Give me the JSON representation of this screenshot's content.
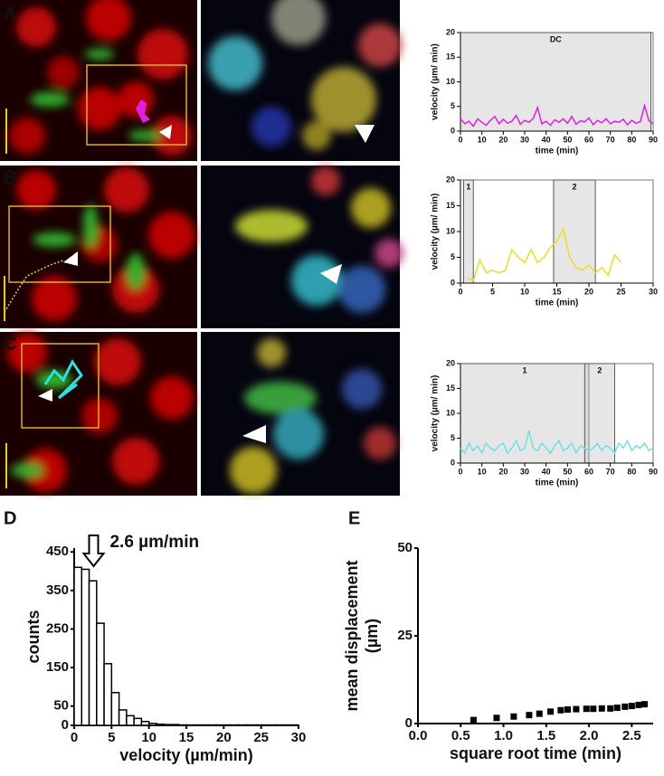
{
  "panel_labels": [
    "A",
    "B",
    "C",
    "D",
    "E"
  ],
  "chart_data": [
    {
      "type": "line",
      "xlabel": "time (min)",
      "ylabel": [
        "velocity (µm/ min)"
      ],
      "xlim": [
        0,
        90
      ],
      "ylim": [
        0,
        20
      ],
      "xticks": [
        0,
        10,
        20,
        30,
        40,
        50,
        60,
        70,
        80,
        90
      ],
      "yticks": [
        0,
        5,
        10,
        15,
        20
      ],
      "regions": [
        {
          "label": "DC",
          "start": 0,
          "end": 89
        }
      ],
      "x": [
        0,
        2,
        4,
        6,
        8,
        10,
        12,
        14,
        16,
        18,
        20,
        22,
        24,
        26,
        28,
        30,
        32,
        34,
        36,
        38,
        40,
        42,
        44,
        46,
        48,
        50,
        52,
        54,
        56,
        58,
        60,
        62,
        64,
        66,
        68,
        70,
        72,
        74,
        76,
        78,
        80,
        82,
        84,
        86,
        88,
        90
      ],
      "series": [
        {
          "color": "#e020e0",
          "values": [
            2.5,
            1.5,
            2,
            1,
            2.5,
            1.8,
            1.2,
            2.2,
            3,
            1.5,
            2.4,
            1.6,
            2,
            3.2,
            1.4,
            2.2,
            1.8,
            2.6,
            4.8,
            1.5,
            2,
            1.2,
            2.3,
            1.8,
            2.5,
            1.6,
            3,
            1.4,
            2.1,
            1.9,
            2.7,
            1.3,
            2.2,
            1.7,
            2.5,
            1.5,
            2,
            1.8,
            2.4,
            1.3,
            2.2,
            1.6,
            1.9,
            5.2,
            2.1,
            1.5
          ]
        }
      ]
    },
    {
      "type": "line",
      "xlabel": "time (min)",
      "ylabel": [
        "velocity (µm/ min)"
      ],
      "xlim": [
        0,
        30
      ],
      "ylim": [
        0,
        20
      ],
      "xticks": [
        0,
        5,
        10,
        15,
        20,
        25,
        30
      ],
      "yticks": [
        0,
        5,
        10,
        15,
        20
      ],
      "regions": [
        {
          "label": "1",
          "start": 0.5,
          "end": 2
        },
        {
          "label": "2",
          "start": 14.5,
          "end": 21
        }
      ],
      "x": [
        1,
        2,
        3,
        4,
        5,
        6,
        7,
        8,
        9,
        10,
        11,
        12,
        13,
        14,
        15,
        16,
        17,
        18,
        19,
        20,
        21,
        22,
        23,
        24,
        25
      ],
      "series": [
        {
          "color": "#e8e020",
          "values": [
            1,
            0.5,
            4.5,
            2,
            2.5,
            2,
            2.5,
            6.5,
            5,
            4,
            6.5,
            4,
            5,
            7,
            8,
            10.5,
            5,
            3,
            2.5,
            3.5,
            2,
            3,
            1.5,
            5.5,
            4
          ]
        }
      ]
    },
    {
      "type": "line",
      "xlabel": "time (min)",
      "ylabel": [
        "velocity (µm/ min)"
      ],
      "xlim": [
        0,
        90
      ],
      "ylim": [
        0,
        20
      ],
      "xticks": [
        0,
        10,
        20,
        30,
        40,
        50,
        60,
        70,
        80,
        90
      ],
      "yticks": [
        0,
        5,
        10,
        15,
        20
      ],
      "regions": [
        {
          "label": "1",
          "start": 0,
          "end": 60
        },
        {
          "label": "2",
          "start": 58,
          "end": 72
        }
      ],
      "x": [
        0,
        2,
        4,
        6,
        8,
        10,
        12,
        14,
        16,
        18,
        20,
        22,
        24,
        26,
        28,
        30,
        32,
        34,
        36,
        38,
        40,
        42,
        44,
        46,
        48,
        50,
        52,
        54,
        56,
        58,
        60,
        62,
        64,
        66,
        68,
        70,
        72,
        74,
        76,
        78,
        80,
        82,
        84,
        86,
        88,
        90
      ],
      "series": [
        {
          "color": "#70e0e0",
          "values": [
            3,
            2,
            4,
            2.5,
            3.5,
            2,
            4,
            3,
            2.5,
            3.5,
            4,
            2,
            3,
            4.5,
            2.5,
            3,
            6.5,
            3,
            2.5,
            4,
            3,
            2,
            3.5,
            4.5,
            2.5,
            3,
            4,
            2,
            3.5,
            3,
            2.5,
            3,
            4,
            2.5,
            3.5,
            3,
            2,
            4,
            3,
            4.5,
            2.5,
            3.5,
            3,
            4,
            2.5,
            3
          ]
        }
      ]
    },
    {
      "type": "histogram",
      "xlabel": "velocity (µm/min)",
      "ylabel": [
        "counts"
      ],
      "xlim": [
        0,
        30
      ],
      "ylim": [
        0,
        460
      ],
      "xticks": [
        0,
        5,
        10,
        15,
        20,
        25,
        30
      ],
      "yticks": [
        0,
        50,
        150,
        250,
        350,
        450
      ],
      "bins": [
        0,
        1,
        2,
        3,
        4,
        5,
        6,
        7,
        8,
        9,
        10,
        11,
        12,
        13,
        14,
        15,
        16,
        17,
        18,
        19,
        20,
        21,
        22,
        23,
        24,
        25,
        26,
        27,
        28,
        29,
        30
      ],
      "values": [
        410,
        405,
        375,
        265,
        160,
        85,
        40,
        25,
        18,
        10,
        5,
        3,
        2,
        2,
        1,
        1,
        1,
        1,
        1,
        1,
        1,
        1,
        1,
        1,
        1,
        1,
        1,
        1,
        1,
        1
      ],
      "annotation": {
        "text": "2.6 µm/min",
        "x": 2.6
      }
    },
    {
      "type": "scatter",
      "xlabel": "square root time (min)",
      "ylabel": [
        "mean displacement",
        "(µm)"
      ],
      "xlim": [
        0,
        2.75
      ],
      "ylim": [
        0,
        50
      ],
      "xticks": [
        {
          "value": 0,
          "label": "0.0"
        },
        0.5,
        {
          "value": 1,
          "label": "1.0"
        },
        1.5,
        {
          "value": 2,
          "label": "2.0"
        },
        2.5
      ],
      "yticks": [
        0,
        25,
        50
      ],
      "color": "#000000",
      "x": [
        0.65,
        0.92,
        1.12,
        1.3,
        1.42,
        1.55,
        1.67,
        1.75,
        1.85,
        1.97,
        2.05,
        2.15,
        2.25,
        2.33,
        2.42,
        2.5,
        2.58,
        2.65
      ],
      "values": [
        1,
        1.6,
        2,
        2.4,
        2.8,
        3.4,
        3.8,
        4,
        4.1,
        4.2,
        4.2,
        4.3,
        4.3,
        4.5,
        4.8,
        5,
        5.3,
        5.5
      ]
    }
  ]
}
